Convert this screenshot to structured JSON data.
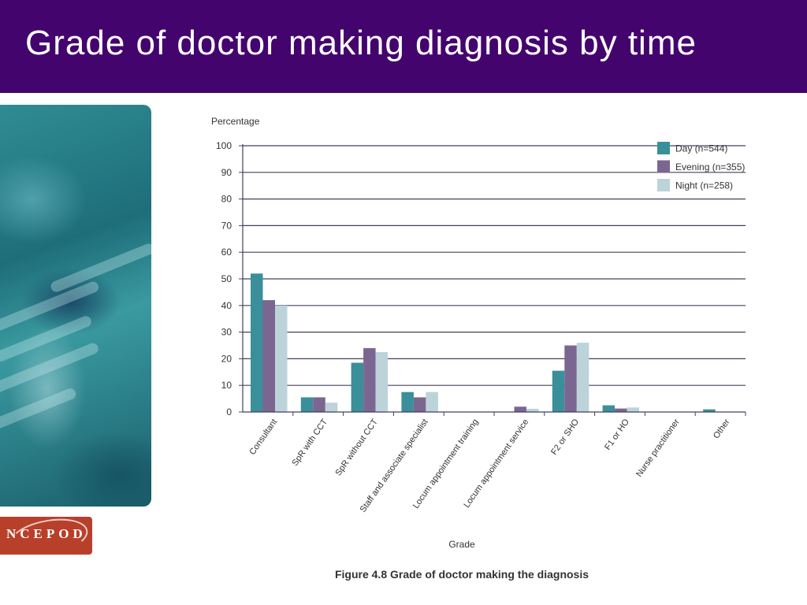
{
  "slide": {
    "title": "Grade of doctor making diagnosis by time",
    "logo": "NCEPOD"
  },
  "colors": {
    "header": "#44046e",
    "day": "#3a8f9b",
    "evening": "#7b6691",
    "night": "#bcd3d9",
    "grid": "#44405a"
  },
  "chart_data": {
    "type": "bar",
    "ylabel": "Percentage",
    "xlabel": "Grade",
    "caption": "Figure 4.8 Grade of doctor making the diagnosis",
    "ylim": [
      0,
      100
    ],
    "yticks": [
      0,
      10,
      20,
      30,
      40,
      50,
      60,
      70,
      80,
      90,
      100
    ],
    "grid": true,
    "legend_position": "top-right",
    "categories": [
      "Consultant",
      "SpR with CCT",
      "SpR without CCT",
      "Staff and associate specialist",
      "Locum appointment training",
      "Locum appointment service",
      "F2 or SHO",
      "F1 or HO",
      "Nurse practitioner",
      "Other"
    ],
    "series": [
      {
        "name": "Day (n=544)",
        "values": [
          52,
          5.5,
          18.5,
          7.5,
          0,
          0,
          15.5,
          2.5,
          0,
          1
        ]
      },
      {
        "name": "Evening (n=355)",
        "values": [
          42,
          5.5,
          24,
          5.5,
          0,
          2,
          25,
          1.3,
          0,
          0
        ]
      },
      {
        "name": "Night (n=258)",
        "values": [
          40,
          3.5,
          22.5,
          7.5,
          0,
          1.2,
          26,
          1.7,
          0,
          0
        ]
      }
    ]
  }
}
